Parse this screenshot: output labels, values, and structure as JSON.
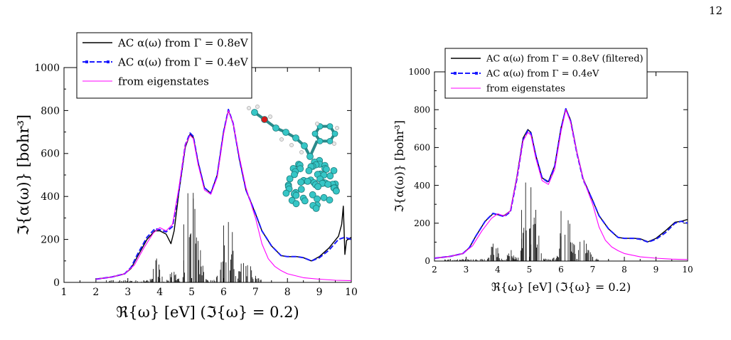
{
  "page": {
    "number": "12"
  },
  "colors": {
    "ac_black": "#000000",
    "ac_blue": "#1a1aff",
    "eigen": "#ff00ff",
    "stick": "#000000"
  },
  "chart_data": [
    {
      "type": "line",
      "title": "",
      "xlabel": "ℜ{ω} [eV]   (ℑ{ω} = 0.2)",
      "ylabel": "ℑ{α(ω)} [bohr³]",
      "xlim": [
        1,
        10
      ],
      "ylim": [
        0,
        1000
      ],
      "xticks": [
        1,
        2,
        3,
        4,
        5,
        6,
        7,
        8,
        9,
        10
      ],
      "yticks": [
        0,
        200,
        400,
        600,
        800,
        1000
      ],
      "legend_position": "top-left",
      "inset": "molecule-structure",
      "series": [
        {
          "name": "AC α(ω) from Γ = 0.8eV",
          "color": "#000000",
          "x": [
            2.0,
            2.5,
            2.9,
            3.1,
            3.3,
            3.6,
            3.85,
            4.0,
            4.2,
            4.35,
            4.45,
            4.6,
            4.8,
            4.95,
            5.05,
            5.2,
            5.4,
            5.6,
            5.8,
            6.0,
            6.15,
            6.3,
            6.5,
            6.7,
            7.0,
            7.2,
            7.5,
            7.8,
            8.0,
            8.3,
            8.5,
            8.75,
            9.0,
            9.3,
            9.6,
            9.7,
            9.75,
            9.8,
            9.85,
            9.9,
            10.0
          ],
          "y": [
            15,
            25,
            40,
            65,
            120,
            200,
            240,
            240,
            225,
            180,
            240,
            420,
            630,
            690,
            675,
            560,
            440,
            415,
            500,
            700,
            800,
            740,
            570,
            430,
            320,
            240,
            170,
            125,
            120,
            120,
            115,
            100,
            120,
            160,
            215,
            270,
            355,
            130,
            195,
            200,
            210
          ]
        },
        {
          "name": "AC α(ω) from Γ = 0.4eV",
          "color": "#1a1aff",
          "x": [
            2.0,
            2.5,
            2.9,
            3.1,
            3.3,
            3.6,
            3.85,
            4.0,
            4.2,
            4.4,
            4.6,
            4.8,
            4.95,
            5.05,
            5.2,
            5.4,
            5.6,
            5.8,
            6.0,
            6.15,
            6.3,
            6.5,
            6.7,
            7.0,
            7.2,
            7.5,
            7.8,
            8.0,
            8.3,
            8.5,
            8.75,
            9.0,
            9.3,
            9.6,
            9.8,
            10.0
          ],
          "y": [
            15,
            25,
            40,
            70,
            130,
            210,
            250,
            245,
            235,
            260,
            430,
            640,
            695,
            680,
            560,
            440,
            415,
            500,
            700,
            805,
            740,
            570,
            430,
            320,
            240,
            170,
            125,
            120,
            120,
            115,
            100,
            115,
            150,
            200,
            210,
            200
          ]
        },
        {
          "name": "from eigenstates",
          "color": "#ff00ff",
          "x": [
            2.0,
            2.5,
            2.9,
            3.2,
            3.5,
            3.8,
            4.0,
            4.2,
            4.4,
            4.6,
            4.8,
            4.95,
            5.05,
            5.2,
            5.4,
            5.6,
            5.8,
            6.0,
            6.15,
            6.3,
            6.5,
            6.7,
            7.0,
            7.2,
            7.4,
            7.6,
            7.8,
            8.0,
            8.5,
            9.0,
            9.5,
            10.0
          ],
          "y": [
            15,
            25,
            40,
            80,
            160,
            230,
            255,
            240,
            270,
            440,
            640,
            685,
            670,
            550,
            430,
            410,
            490,
            690,
            800,
            740,
            580,
            440,
            300,
            180,
            110,
            75,
            55,
            40,
            22,
            15,
            10,
            8
          ]
        }
      ]
    },
    {
      "type": "line",
      "title": "",
      "xlabel": "ℜ{ω} [eV]   (ℑ{ω} = 0.2)",
      "ylabel": "ℑ{α(ω)} [bohr³]",
      "xlim": [
        2,
        10
      ],
      "ylim": [
        0,
        1000
      ],
      "xticks": [
        2,
        3,
        4,
        5,
        6,
        7,
        8,
        9,
        10
      ],
      "yticks": [
        0,
        200,
        400,
        600,
        800,
        1000
      ],
      "legend_position": "top-left",
      "series": [
        {
          "name": "AC α(ω) from Γ = 0.8eV (filtered)",
          "color": "#000000",
          "x": [
            2.0,
            2.5,
            2.9,
            3.1,
            3.3,
            3.6,
            3.85,
            4.0,
            4.2,
            4.4,
            4.6,
            4.8,
            4.95,
            5.05,
            5.2,
            5.4,
            5.6,
            5.8,
            6.0,
            6.15,
            6.3,
            6.5,
            6.7,
            7.0,
            7.2,
            7.5,
            7.8,
            8.0,
            8.3,
            8.5,
            8.75,
            9.0,
            9.3,
            9.6,
            9.8,
            10.0
          ],
          "y": [
            15,
            25,
            40,
            70,
            130,
            210,
            250,
            245,
            240,
            265,
            440,
            650,
            695,
            680,
            560,
            440,
            420,
            505,
            705,
            805,
            745,
            575,
            435,
            320,
            240,
            170,
            125,
            120,
            120,
            118,
            102,
            120,
            160,
            205,
            210,
            220
          ]
        },
        {
          "name": "AC α(ω) from Γ = 0.4eV",
          "color": "#1a1aff",
          "x": [
            2.0,
            2.5,
            2.9,
            3.1,
            3.3,
            3.6,
            3.85,
            4.0,
            4.2,
            4.4,
            4.6,
            4.8,
            4.95,
            5.05,
            5.2,
            5.4,
            5.6,
            5.8,
            6.0,
            6.15,
            6.3,
            6.5,
            6.7,
            7.0,
            7.2,
            7.5,
            7.8,
            8.0,
            8.3,
            8.5,
            8.75,
            9.0,
            9.3,
            9.6,
            9.8,
            10.0
          ],
          "y": [
            15,
            25,
            40,
            70,
            130,
            210,
            252,
            245,
            235,
            260,
            430,
            640,
            690,
            675,
            560,
            440,
            415,
            500,
            700,
            805,
            740,
            570,
            430,
            320,
            240,
            170,
            125,
            120,
            120,
            115,
            100,
            115,
            150,
            200,
            210,
            200
          ]
        },
        {
          "name": "from eigenstates",
          "color": "#ff00ff",
          "x": [
            2.0,
            2.5,
            2.9,
            3.2,
            3.5,
            3.8,
            4.0,
            4.2,
            4.4,
            4.6,
            4.8,
            4.95,
            5.05,
            5.2,
            5.4,
            5.6,
            5.8,
            6.0,
            6.15,
            6.3,
            6.5,
            6.7,
            7.0,
            7.2,
            7.4,
            7.6,
            7.8,
            8.0,
            8.5,
            9.0,
            9.5,
            10.0
          ],
          "y": [
            15,
            25,
            40,
            80,
            160,
            225,
            250,
            238,
            265,
            435,
            635,
            680,
            665,
            545,
            425,
            405,
            485,
            685,
            800,
            735,
            575,
            435,
            300,
            180,
            110,
            75,
            55,
            40,
            22,
            15,
            10,
            8
          ]
        }
      ]
    }
  ]
}
